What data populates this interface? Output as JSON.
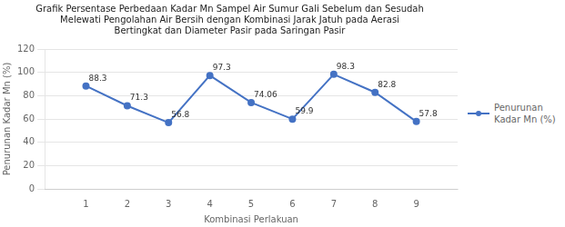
{
  "chart_data": {
    "type": "line",
    "title": [
      "Grafik Persentase Perbedaan Kadar Mn Sampel Air Sumur Gali Sebelum dan Sesudah",
      "Melewati Pengolahan Air Bersih dengan Kombinasi Jarak Jatuh pada Aerasi",
      "Bertingkat dan Diameter Pasir pada Saringan Pasir"
    ],
    "x_label": "Kombinasi Perlakuan",
    "y_label": "Penurunan Kadar Mn (%)",
    "x": [
      1,
      2,
      3,
      4,
      5,
      6,
      7,
      8,
      9
    ],
    "series": [
      {
        "name": "Penurunan\nKadar Mn (%)",
        "color": "#4472C4",
        "marker": "circle",
        "values": [
          88.3,
          71.3,
          56.8,
          97.3,
          74.06,
          59.9,
          98.3,
          82.8,
          57.8
        ]
      }
    ],
    "xlim": [
      0,
      10
    ],
    "xticks": [
      1,
      2,
      3,
      4,
      5,
      6,
      7,
      8,
      9
    ],
    "ylim": [
      0,
      120
    ],
    "yticks": [
      0,
      20,
      40,
      60,
      80,
      100,
      120
    ],
    "grid": "y",
    "legend": "right",
    "data_labels": true
  }
}
